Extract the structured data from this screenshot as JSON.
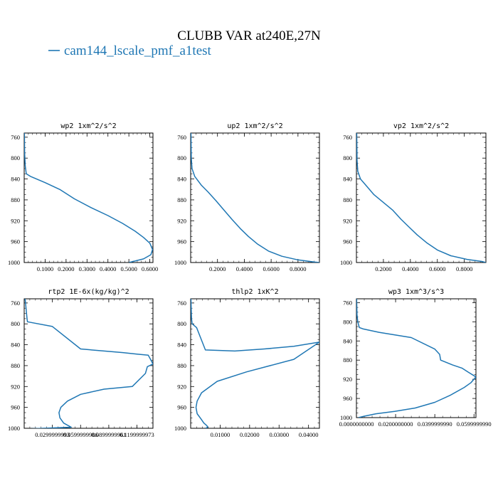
{
  "figure": {
    "title": "CLUBB VAR at240E,27N",
    "legend_label": "cam144_lscale_pmf_a1test",
    "line_color": "#1f77b4"
  },
  "chart_data": [
    {
      "type": "line",
      "title": "wp2   1xm^2/s^2",
      "y_ticks": [
        "760",
        "800",
        "840",
        "880",
        "920",
        "960",
        "1000"
      ],
      "x_ticks": [
        "0.1000",
        "0.2000",
        "0.3000",
        "0.4000",
        "0.5000",
        "0.6000"
      ],
      "xlim": [
        0,
        0.615
      ],
      "ylim": [
        752,
        1000
      ],
      "series": [
        {
          "x": [
            0.001,
            0.002,
            0.005,
            0.01,
            0.03,
            0.1,
            0.17,
            0.24,
            0.32,
            0.4,
            0.47,
            0.53,
            0.57,
            0.6,
            0.613,
            0.605,
            0.57,
            0.5
          ],
          "y": [
            752,
            790,
            815,
            830,
            835,
            847,
            860,
            878,
            895,
            910,
            925,
            940,
            952,
            963,
            975,
            985,
            993,
            1000
          ]
        }
      ]
    },
    {
      "type": "line",
      "title": "up2   1xm^2/s^2",
      "y_ticks": [
        "760",
        "800",
        "840",
        "880",
        "920",
        "960",
        "1000"
      ],
      "x_ticks": [
        "0.2000",
        "0.4000",
        "0.6000",
        "0.8000"
      ],
      "xlim": [
        0,
        0.96
      ],
      "ylim": [
        752,
        1000
      ],
      "series": [
        {
          "x": [
            0.002,
            0.005,
            0.01,
            0.03,
            0.08,
            0.13,
            0.19,
            0.25,
            0.31,
            0.37,
            0.43,
            0.5,
            0.58,
            0.68,
            0.8,
            0.92,
            0.96
          ],
          "y": [
            752,
            800,
            820,
            835,
            852,
            865,
            882,
            900,
            918,
            935,
            950,
            965,
            978,
            988,
            995,
            999,
            1000
          ]
        }
      ]
    },
    {
      "type": "line",
      "title": "vp2   1xm^2/s^2",
      "y_ticks": [
        "760",
        "800",
        "840",
        "880",
        "920",
        "960",
        "1000"
      ],
      "x_ticks": [
        "0.2000",
        "0.4000",
        "0.6000",
        "0.8000"
      ],
      "xlim": [
        0,
        0.96
      ],
      "ylim": [
        752,
        1000
      ],
      "series": [
        {
          "x": [
            0.002,
            0.005,
            0.01,
            0.03,
            0.08,
            0.13,
            0.2,
            0.27,
            0.33,
            0.39,
            0.45,
            0.52,
            0.6,
            0.7,
            0.82,
            0.93,
            0.96
          ],
          "y": [
            752,
            805,
            825,
            840,
            855,
            870,
            885,
            900,
            917,
            932,
            947,
            962,
            976,
            987,
            994,
            998,
            1000
          ]
        }
      ]
    },
    {
      "type": "line",
      "title": "rtp2   1E-6x(kg/kg)^2",
      "y_ticks": [
        "760",
        "800",
        "840",
        "880",
        "920",
        "960",
        "1000"
      ],
      "x_ticks": [
        "0.0299999993",
        "0.0599999986",
        "0.0899999961",
        "0.1199999973"
      ],
      "xlim": [
        0,
        0.137
      ],
      "ylim": [
        752,
        1000
      ],
      "series": [
        {
          "x": [
            0.001,
            0.002,
            0.003,
            0.0035,
            0.03,
            0.06,
            0.085,
            0.105,
            0.12,
            0.132,
            0.135,
            0.137,
            0.131,
            0.129,
            0.115,
            0.085,
            0.06,
            0.046,
            0.039,
            0.037,
            0.038,
            0.042,
            0.05,
            0.02,
            0.005
          ],
          "y": [
            752,
            770,
            790,
            796,
            805,
            848,
            852,
            855,
            858,
            860,
            870,
            877,
            882,
            895,
            920,
            925,
            935,
            948,
            960,
            970,
            980,
            990,
            998,
            1000,
            1001
          ]
        }
      ]
    },
    {
      "type": "line",
      "title": "thlp2   1xK^2",
      "y_ticks": [
        "760",
        "800",
        "840",
        "880",
        "920",
        "960",
        "1000"
      ],
      "x_ticks": [
        "0.01000",
        "0.02000",
        "0.03000",
        "0.04000"
      ],
      "xlim": [
        0,
        0.0437
      ],
      "ylim": [
        752,
        1000
      ],
      "series": [
        {
          "x": [
            0.0001,
            0.0003,
            0.0005,
            0.002,
            0.005,
            0.015,
            0.025,
            0.035,
            0.0437,
            0.035,
            0.019,
            0.009,
            0.0037,
            0.0022,
            0.0018,
            0.0022,
            0.0035,
            0.0045,
            0.0055,
            0.0058,
            0.005
          ],
          "y": [
            752,
            790,
            800,
            807,
            850,
            852,
            848,
            843,
            835,
            868,
            892,
            910,
            932,
            948,
            960,
            972,
            982,
            990,
            995,
            998,
            1000
          ]
        }
      ]
    },
    {
      "type": "line",
      "title": "wp3   1xm^3/s^3",
      "y_ticks": [
        "760",
        "800",
        "840",
        "880",
        "920",
        "960",
        "1000"
      ],
      "x_ticks": [
        "0.0000000000",
        "0.0200000000",
        "0.0399999990",
        "0.0599999990"
      ],
      "xlim": [
        0,
        0.061
      ],
      "ylim": [
        752,
        1000
      ],
      "series": [
        {
          "x": [
            0.0001,
            0.0003,
            0.0007,
            0.0015,
            0.0035,
            0.0115,
            0.028,
            0.04,
            0.0425,
            0.043,
            0.049,
            0.054,
            0.057,
            0.061,
            0.0585,
            0.055,
            0.048,
            0.04,
            0.03,
            0.0195,
            0.01,
            0.004,
            0.001
          ],
          "y": [
            752,
            785,
            800,
            812,
            815,
            822,
            833,
            857,
            868,
            880,
            890,
            897,
            905,
            915,
            927,
            937,
            953,
            968,
            980,
            987,
            992,
            997,
            1000
          ]
        }
      ]
    }
  ]
}
